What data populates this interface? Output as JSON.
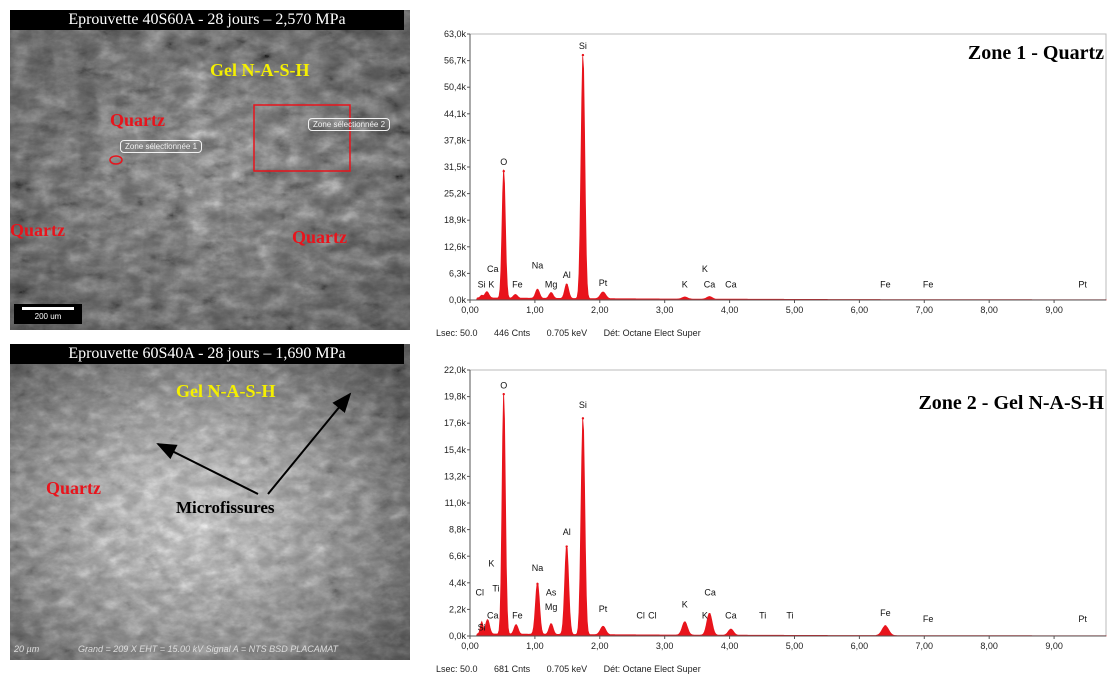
{
  "sem_images": [
    {
      "caption": "Eprouvette 40S60A - 28 jours – 2,570 MPa",
      "labels": {
        "gel": "Gel N-A-S-H",
        "quartz_top": "Quartz",
        "quartz_left": "Quartz",
        "quartz_right": "Quartz"
      },
      "zone_tags": [
        "Zone sélectionnée 1",
        "Zone sélectionnée 2"
      ],
      "scale_bar": "200 um"
    },
    {
      "caption": "Eprouvette 60S40A - 28 jours – 1,690 MPa",
      "labels": {
        "gel": "Gel N-A-S-H",
        "quartz": "Quartz",
        "microfissures": "Microfissures"
      },
      "scale_bar": "20 µm",
      "footer": "Grand =   209 X        EHT = 15.00 kV    Signal A = NTS BSD  PLACAMAT"
    }
  ],
  "chart_data": [
    {
      "type": "line",
      "title": "Zone 1 - Quartz",
      "x_ticks": [
        "0,00",
        "1,00",
        "2,00",
        "3,00",
        "4,00",
        "5,00",
        "6,00",
        "7,00",
        "8,00",
        "9,00"
      ],
      "xlim": [
        0,
        9.8
      ],
      "y_ticks": [
        "0,0k",
        "6,3k",
        "12,6k",
        "18,9k",
        "25,2k",
        "31,5k",
        "37,8k",
        "44,1k",
        "50,4k",
        "56,7k",
        "63,0k"
      ],
      "ylim": [
        0,
        63.0
      ],
      "peaks": [
        {
          "x": 0.18,
          "y": 0.6,
          "w": 0.02
        },
        {
          "x": 0.26,
          "y": 1.5,
          "w": 0.03
        },
        {
          "x": 0.52,
          "y": 30.5,
          "w": 0.025
        },
        {
          "x": 0.7,
          "y": 0.9,
          "w": 0.03
        },
        {
          "x": 1.04,
          "y": 2.2,
          "w": 0.03
        },
        {
          "x": 1.25,
          "y": 1.4,
          "w": 0.03
        },
        {
          "x": 1.49,
          "y": 3.5,
          "w": 0.03
        },
        {
          "x": 1.74,
          "y": 58.0,
          "w": 0.028
        },
        {
          "x": 2.05,
          "y": 1.6,
          "w": 0.04
        },
        {
          "x": 3.31,
          "y": 0.5,
          "w": 0.04
        },
        {
          "x": 3.69,
          "y": 0.6,
          "w": 0.04
        }
      ],
      "peak_labels": [
        {
          "x": 0.18,
          "y": 2.5,
          "text": "Si"
        },
        {
          "x": 0.33,
          "y": 2.5,
          "text": "K"
        },
        {
          "x": 0.35,
          "y": 6.2,
          "text": "Ca"
        },
        {
          "x": 0.52,
          "y": 31.5,
          "text": "O"
        },
        {
          "x": 0.73,
          "y": 2.5,
          "text": "Fe"
        },
        {
          "x": 1.04,
          "y": 7.0,
          "text": "Na"
        },
        {
          "x": 1.25,
          "y": 2.5,
          "text": "Mg"
        },
        {
          "x": 1.49,
          "y": 4.7,
          "text": "Al"
        },
        {
          "x": 1.74,
          "y": 59.0,
          "text": "Si"
        },
        {
          "x": 2.05,
          "y": 2.8,
          "text": "Pt"
        },
        {
          "x": 3.31,
          "y": 2.5,
          "text": "K"
        },
        {
          "x": 3.62,
          "y": 6.2,
          "text": "K"
        },
        {
          "x": 3.69,
          "y": 2.5,
          "text": "Ca"
        },
        {
          "x": 4.02,
          "y": 2.5,
          "text": "Ca"
        },
        {
          "x": 6.4,
          "y": 2.5,
          "text": "Fe"
        },
        {
          "x": 7.06,
          "y": 2.5,
          "text": "Fe"
        },
        {
          "x": 9.44,
          "y": 2.5,
          "text": "Pt"
        }
      ],
      "footer": {
        "lsec": "Lsec: 50.0",
        "counts": "446 Cnts",
        "energy": "0.705 keV",
        "detector": "Dét: Octane Elect Super"
      },
      "colors": {
        "fill": "#e8141c",
        "axis": "#555555"
      }
    },
    {
      "type": "line",
      "title": "Zone 2 - Gel N-A-S-H",
      "x_ticks": [
        "0,00",
        "1,00",
        "2,00",
        "3,00",
        "4,00",
        "5,00",
        "6,00",
        "7,00",
        "8,00",
        "9,00"
      ],
      "xlim": [
        0,
        9.8
      ],
      "y_ticks": [
        "0,0k",
        "2,2k",
        "4,4k",
        "6,6k",
        "8,8k",
        "11,0k",
        "13,2k",
        "15,4k",
        "17,6k",
        "19,8k",
        "22,0k"
      ],
      "ylim": [
        0,
        22.0
      ],
      "peaks": [
        {
          "x": 0.18,
          "y": 1.0,
          "w": 0.02
        },
        {
          "x": 0.27,
          "y": 1.2,
          "w": 0.03
        },
        {
          "x": 0.52,
          "y": 20.0,
          "w": 0.025
        },
        {
          "x": 0.71,
          "y": 0.8,
          "w": 0.03
        },
        {
          "x": 1.04,
          "y": 4.3,
          "w": 0.03
        },
        {
          "x": 1.25,
          "y": 0.9,
          "w": 0.03
        },
        {
          "x": 1.49,
          "y": 7.4,
          "w": 0.03
        },
        {
          "x": 1.74,
          "y": 18.0,
          "w": 0.028
        },
        {
          "x": 2.05,
          "y": 0.7,
          "w": 0.04
        },
        {
          "x": 3.31,
          "y": 1.1,
          "w": 0.04
        },
        {
          "x": 3.69,
          "y": 1.8,
          "w": 0.04
        },
        {
          "x": 4.02,
          "y": 0.5,
          "w": 0.04
        },
        {
          "x": 6.4,
          "y": 0.8,
          "w": 0.05
        }
      ],
      "peak_labels": [
        {
          "x": 0.18,
          "y": 0.3,
          "text": "Si"
        },
        {
          "x": 0.15,
          "y": 3.2,
          "text": "Cl"
        },
        {
          "x": 0.35,
          "y": 1.3,
          "text": "Ca"
        },
        {
          "x": 0.33,
          "y": 5.6,
          "text": "K"
        },
        {
          "x": 0.4,
          "y": 3.5,
          "text": "Ti"
        },
        {
          "x": 0.52,
          "y": 20.3,
          "text": "O"
        },
        {
          "x": 0.73,
          "y": 1.3,
          "text": "Fe"
        },
        {
          "x": 1.04,
          "y": 5.2,
          "text": "Na"
        },
        {
          "x": 1.25,
          "y": 3.2,
          "text": "As"
        },
        {
          "x": 1.25,
          "y": 2.0,
          "text": "Mg"
        },
        {
          "x": 1.49,
          "y": 8.2,
          "text": "Al"
        },
        {
          "x": 1.74,
          "y": 18.7,
          "text": "Si"
        },
        {
          "x": 2.05,
          "y": 1.8,
          "text": "Pt"
        },
        {
          "x": 2.63,
          "y": 1.3,
          "text": "Cl"
        },
        {
          "x": 2.81,
          "y": 1.3,
          "text": "Cl"
        },
        {
          "x": 3.31,
          "y": 2.2,
          "text": "K"
        },
        {
          "x": 3.7,
          "y": 3.2,
          "text": "Ca"
        },
        {
          "x": 3.62,
          "y": 1.3,
          "text": "K"
        },
        {
          "x": 4.02,
          "y": 1.3,
          "text": "Ca"
        },
        {
          "x": 4.51,
          "y": 1.3,
          "text": "Ti"
        },
        {
          "x": 4.93,
          "y": 1.3,
          "text": "Ti"
        },
        {
          "x": 6.4,
          "y": 1.5,
          "text": "Fe"
        },
        {
          "x": 7.06,
          "y": 1.0,
          "text": "Fe"
        },
        {
          "x": 9.44,
          "y": 1.0,
          "text": "Pt"
        }
      ],
      "footer": {
        "lsec": "Lsec: 50.0",
        "counts": "681 Cnts",
        "energy": "0.705 keV",
        "detector": "Dét: Octane Elect Super"
      },
      "colors": {
        "fill": "#e8141c",
        "axis": "#555555"
      }
    }
  ]
}
